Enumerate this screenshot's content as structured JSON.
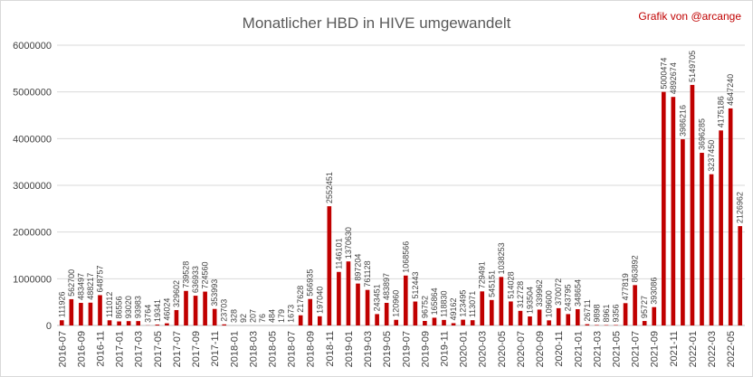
{
  "chart_data": {
    "type": "bar",
    "title": "Monatlicher HBD in HIVE umgewandelt",
    "credit": "Grafik von @arcange",
    "bar_color": "#c00000",
    "grid": true,
    "ylim": [
      0,
      6000000
    ],
    "yticks": [
      "0",
      "1000000",
      "2000000",
      "3000000",
      "4000000",
      "5000000",
      "6000000"
    ],
    "tick_labels": [
      "2016-07",
      "2016-09",
      "2016-11",
      "2017-01",
      "2017-03",
      "2017-05",
      "2017-07",
      "2017-09",
      "2017-11",
      "2018-01",
      "2018-03",
      "2018-05",
      "2018-07",
      "2018-09",
      "2018-11",
      "2019-01",
      "2019-03",
      "2019-05",
      "2019-07",
      "2019-09",
      "2019-11",
      "2020-01",
      "2020-03",
      "2020-05",
      "2020-07",
      "2020-09",
      "2020-11",
      "2021-01",
      "2021-03",
      "2021-05",
      "2021-07",
      "2021-09",
      "2021-11",
      "2022-01",
      "2022-03",
      "2022-05"
    ],
    "categories": [
      "2016-07",
      "2016-08",
      "2016-09",
      "2016-10",
      "2016-11",
      "2016-12",
      "2017-01",
      "2017-02",
      "2017-03",
      "2017-04",
      "2017-05",
      "2017-06",
      "2017-07",
      "2017-08",
      "2017-09",
      "2017-10",
      "2017-11",
      "2017-12",
      "2018-01",
      "2018-02",
      "2018-03",
      "2018-04",
      "2018-05",
      "2018-06",
      "2018-07",
      "2018-08",
      "2018-09",
      "2018-10",
      "2018-11",
      "2018-12",
      "2019-01",
      "2019-02",
      "2019-03",
      "2019-04",
      "2019-05",
      "2019-06",
      "2019-07",
      "2019-08",
      "2019-09",
      "2019-10",
      "2019-11",
      "2019-12",
      "2020-01",
      "2020-02",
      "2020-03",
      "2020-04",
      "2020-05",
      "2020-06",
      "2020-07",
      "2020-08",
      "2020-09",
      "2020-10",
      "2020-11",
      "2020-12",
      "2021-01",
      "2021-02",
      "2021-03",
      "2021-04",
      "2021-05",
      "2021-06",
      "2021-07",
      "2021-08",
      "2021-09",
      "2021-10",
      "2021-11",
      "2021-12",
      "2022-01",
      "2022-02",
      "2022-03",
      "2022-04",
      "2022-05",
      "2022-06"
    ],
    "values": [
      111926,
      562700,
      483497,
      488217,
      648757,
      111012,
      86556,
      93020,
      93983,
      3764,
      19341,
      46024,
      329602,
      739528,
      636933,
      724560,
      353993,
      23703,
      328,
      92,
      207,
      76,
      484,
      179,
      1673,
      217628,
      566935,
      197040,
      2552451,
      1146101,
      1370630,
      897204,
      761128,
      243451,
      483897,
      120960,
      1068566,
      512443,
      96752,
      165864,
      118830,
      49162,
      123495,
      113071,
      729491,
      545151,
      1038253,
      514028,
      312728,
      193504,
      339962,
      109600,
      370072,
      243795,
      348654,
      26711,
      9898,
      8961,
      9356,
      477819,
      863892,
      95727,
      393086,
      5000474,
      4892674,
      3986216,
      5149705,
      3696285,
      3237450,
      4175186,
      4647240,
      2126962
    ],
    "data_labels": [
      "111926",
      "562700",
      "483497",
      "488217",
      "648757",
      "111012",
      "86556",
      "93020",
      "93983",
      "3764",
      "19341",
      "46024",
      "329602",
      "739528",
      "636933",
      "724560",
      "353993",
      "23703",
      "328",
      "92",
      "207",
      "76",
      "484",
      "179",
      "1673",
      "217628",
      "566935",
      "197040",
      "2552451",
      "1146101",
      "1370630",
      "897204",
      "761128",
      "243451",
      "483897",
      "120960",
      "1068566",
      "512443",
      "96752",
      "165864",
      "118830",
      "49162",
      "123495",
      "113071",
      "729491",
      "545151",
      "1038253",
      "514028",
      "312728",
      "193504",
      "339962",
      "109600",
      "370072",
      "243795",
      "348654",
      "26711",
      "9898",
      "8961",
      "9356",
      "477819",
      "863892",
      "95727",
      "393086",
      "5000474",
      "4892674",
      "3986216",
      "5149705",
      "3696285",
      "3237450",
      "4175186",
      "4647240",
      "2126962"
    ]
  }
}
